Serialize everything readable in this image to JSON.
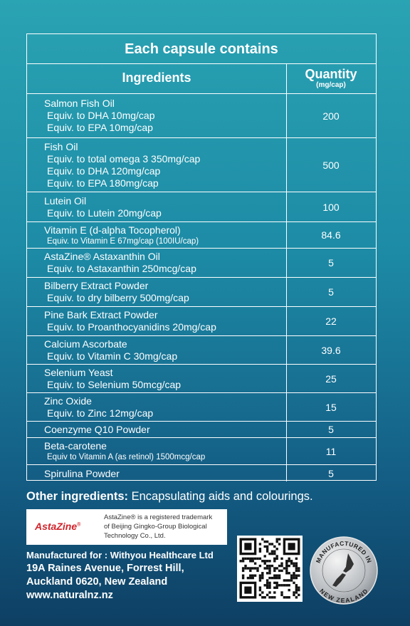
{
  "table": {
    "title": "Each capsule contains",
    "headers": {
      "ingredients": "Ingredients",
      "quantity": "Quantity",
      "quantity_unit": "(mg/cap)"
    },
    "rows": [
      {
        "name": "Salmon Fish Oil",
        "details": [
          "Equiv. to DHA 10mg/cap",
          "Equiv. to EPA 10mg/cap"
        ],
        "quantity": "200"
      },
      {
        "name": "Fish Oil",
        "details": [
          "Equiv. to total omega 3 350mg/cap",
          "Equiv. to DHA 120mg/cap",
          "Equiv. to EPA 180mg/cap"
        ],
        "quantity": "500"
      },
      {
        "name": "Lutein Oil",
        "details": [
          "Equiv. to Lutein 20mg/cap"
        ],
        "quantity": "100"
      },
      {
        "name": "Vitamin E (d-alpha Tocopherol)",
        "details": [
          "Equiv. to Vitamin E 67mg/cap (100IU/cap)"
        ],
        "quantity": "84.6"
      },
      {
        "name": "AstaZine® Astaxanthin Oil",
        "details": [
          "Equiv. to Astaxanthin 250mcg/cap"
        ],
        "quantity": "5"
      },
      {
        "name": "Bilberry Extract Powder",
        "details": [
          "Equiv. to dry bilberry 500mg/cap"
        ],
        "quantity": "5"
      },
      {
        "name": "Pine Bark Extract Powder",
        "details": [
          "Equiv. to Proanthocyanidins 20mg/cap"
        ],
        "quantity": "22"
      },
      {
        "name": "Calcium Ascorbate",
        "details": [
          "Equiv. to Vitamin C 30mg/cap"
        ],
        "quantity": "39.6"
      },
      {
        "name": "Selenium Yeast",
        "details": [
          "Equiv. to Selenium 50mcg/cap"
        ],
        "quantity": "25"
      },
      {
        "name": "Zinc Oxide",
        "details": [
          "Equiv. to Zinc 12mg/cap"
        ],
        "quantity": "15"
      },
      {
        "name": "Coenzyme Q10 Powder",
        "details": [],
        "quantity": "5"
      },
      {
        "name": "Beta-carotene",
        "details": [
          "Equiv to Vitamin A (as retinol) 1500mcg/cap"
        ],
        "quantity": "11"
      },
      {
        "name": "Spirulina Powder",
        "details": [],
        "quantity": "5"
      }
    ]
  },
  "other_ingredients": {
    "label": "Other ingredients:",
    "text": "Encapsulating aids and colourings."
  },
  "trademark": {
    "logo": "AstaZine",
    "logo_mark": "®",
    "text": [
      "AstaZine® is a registered trademark",
      "of Beijing Gingko-Group Biological",
      "Technology Co., Ltd."
    ]
  },
  "manufacturer": {
    "label": "Manufactured for :",
    "name": "Withyou Healthcare Ltd",
    "address": [
      "19A Raines Avenue, Forrest Hill,",
      "Auckland 0620, New Zealand"
    ],
    "website": "www.naturalnz.nz"
  },
  "badge": {
    "top": "MANUFACTURED IN",
    "bottom": "NEW ZEALAND"
  }
}
